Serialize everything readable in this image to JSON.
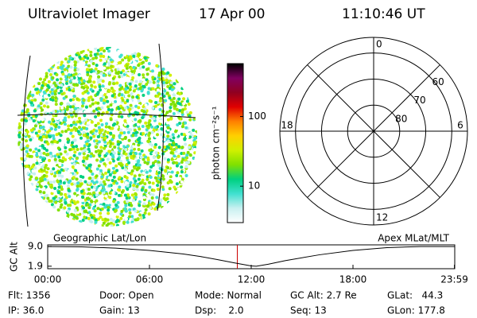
{
  "header": {
    "title": "Ultraviolet Imager",
    "date": "17 Apr 00",
    "time": "11:10:46 UT"
  },
  "chart_data": [
    {
      "type": "colorbar",
      "label": "photon cm⁻²s⁻¹",
      "scale": "log",
      "clim": [
        3,
        575
      ],
      "ticks": [
        10,
        100
      ],
      "colors": [
        "#ffffff",
        "#c8f0f0",
        "#40e0d0",
        "#00d080",
        "#80e000",
        "#d0f000",
        "#ffd000",
        "#ff8000",
        "#e00000",
        "#900020",
        "#800060",
        "#000000"
      ]
    },
    {
      "type": "polar",
      "rlim": [
        90,
        54
      ],
      "rticks": [
        80,
        70,
        60
      ],
      "angle_ticks": [
        12,
        6,
        0,
        18
      ]
    },
    {
      "type": "line",
      "title_left": "Geographic Lat/Lon",
      "title_right": "Apex MLat/MLT",
      "ylabel": "GC Alt",
      "x": [
        0,
        2,
        4,
        6,
        8,
        9,
        10,
        11,
        12,
        12.3,
        13,
        14,
        16,
        18,
        20,
        22,
        23.98
      ],
      "values": [
        9.0,
        8.9,
        8.4,
        7.6,
        6.3,
        5.4,
        4.3,
        3.1,
        2.0,
        1.9,
        2.6,
        3.9,
        6.0,
        7.6,
        8.6,
        9.0,
        9.0
      ],
      "color": "#000000",
      "marker": 11.18,
      "marker_color": "#cc0000",
      "xlim": [
        0,
        24
      ],
      "xticks": [
        {
          "value": 0,
          "label": "00:00"
        },
        {
          "value": 6,
          "label": "06:00"
        },
        {
          "value": 12,
          "label": "12:00"
        },
        {
          "value": 18,
          "label": "18:00"
        },
        {
          "value": 23.98,
          "label": "23:59"
        }
      ],
      "ylim": [
        1.0,
        9.6
      ],
      "yticks": [
        {
          "value": 9,
          "label": "9.0"
        },
        {
          "value": 1.9,
          "label": "1.9"
        }
      ]
    }
  ],
  "info": {
    "rows": [
      [
        "Flt: 1356",
        "Door: Open",
        "Mode: Normal",
        "GC Alt: 2.7 Re",
        "GLat:   44.3"
      ],
      [
        "IP: 36.0",
        "Gain: 13",
        "Dsp:    2.0",
        "Seq: 13",
        "GLon: 177.8"
      ]
    ]
  }
}
